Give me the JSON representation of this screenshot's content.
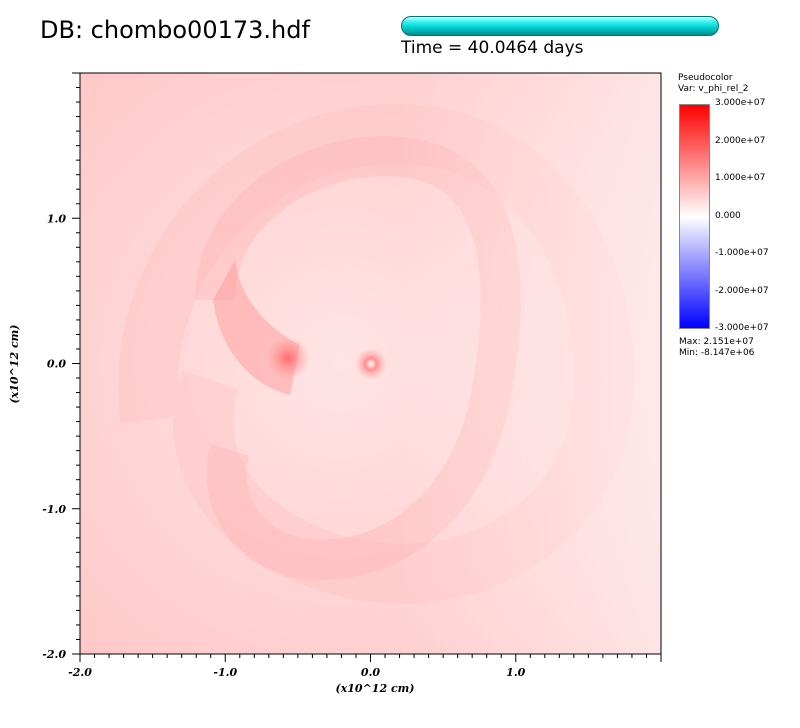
{
  "header": {
    "db_title": "DB: chombo00173.hdf",
    "time_label": "Time = 40.0464 days"
  },
  "legend": {
    "title": "Pseudocolor",
    "variable": "Var: v_phi_rel_2",
    "ticks": [
      "3.000e+07",
      "2.000e+07",
      "1.000e+07",
      "0.000",
      "-1.000e+07",
      "-2.000e+07",
      "-3.000e+07"
    ],
    "max_label": "Max:  2.151e+07",
    "min_label": "Min: -8.147e+06"
  },
  "chart_data": {
    "type": "heatmap",
    "title": "",
    "xlabel": "(x10^12  cm)",
    "ylabel": "(x10^12  cm)",
    "xlim": [
      -2.0,
      2.0
    ],
    "ylim": [
      -2.0,
      2.0
    ],
    "x_ticks": [
      -2.0,
      -1.0,
      0.0,
      1.0
    ],
    "y_ticks": [
      -2.0,
      -1.0,
      0.0,
      1.0
    ],
    "x_tick_labels": [
      "-2.0",
      "-1.0",
      "0.0",
      "1.0"
    ],
    "y_tick_labels": [
      "-2.0",
      "-1.0",
      "0.0",
      "1.0"
    ],
    "colormap": "hot_and_cold",
    "color_range": [
      -30000000,
      30000000
    ],
    "data_max": 21510000,
    "data_min": -8147000,
    "features": [
      {
        "name": "companion core",
        "x": -0.55,
        "y": 0.02
      },
      {
        "name": "primary core",
        "x": 0.0,
        "y": 0.0
      }
    ],
    "colors": {
      "high": "#ff0000",
      "mid": "#ffffff",
      "low": "#0000ff"
    }
  }
}
